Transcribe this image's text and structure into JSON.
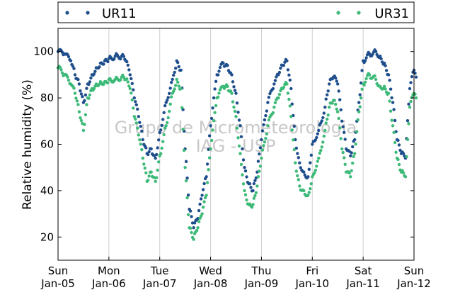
{
  "chart_data": {
    "type": "scatter",
    "ylabel": "Relative humidity (%)",
    "xlabel": "",
    "ylim": [
      10,
      110
    ],
    "yticks": [
      20,
      40,
      60,
      80,
      100
    ],
    "xlim": [
      "Jan-05",
      "Jan-12"
    ],
    "xticks": [
      {
        "day": "Sun",
        "date": "Jan-05"
      },
      {
        "day": "Mon",
        "date": "Jan-06"
      },
      {
        "day": "Tue",
        "date": "Jan-07"
      },
      {
        "day": "Wed",
        "date": "Jan-08"
      },
      {
        "day": "Thu",
        "date": "Jan-09"
      },
      {
        "day": "Fri",
        "date": "Jan-10"
      },
      {
        "day": "Sat",
        "date": "Jan-11"
      },
      {
        "day": "Sun",
        "date": "Jan-12"
      }
    ],
    "grid": "vertical",
    "legend_position": "top",
    "watermark": [
      "Grupo de Micrometeorologia",
      "IAG - USP"
    ],
    "series": [
      {
        "name": "UR11",
        "color": "#1f4e8c",
        "points": [
          [
            "Jan-05 00:00",
            100
          ],
          [
            "Jan-05 03:00",
            99
          ],
          [
            "Jan-05 06:00",
            96
          ],
          [
            "Jan-05 08:00",
            90
          ],
          [
            "Jan-05 10:00",
            86
          ],
          [
            "Jan-05 12:00",
            78
          ],
          [
            "Jan-05 14:00",
            86
          ],
          [
            "Jan-05 16:00",
            90
          ],
          [
            "Jan-05 18:00",
            93
          ],
          [
            "Jan-05 20:00",
            95
          ],
          [
            "Jan-05 22:00",
            96
          ],
          [
            "Jan-06 00:00",
            97
          ],
          [
            "Jan-06 03:00",
            98
          ],
          [
            "Jan-06 06:00",
            98
          ],
          [
            "Jan-06 08:00",
            96
          ],
          [
            "Jan-06 10:00",
            90
          ],
          [
            "Jan-06 12:00",
            80
          ],
          [
            "Jan-06 14:00",
            72
          ],
          [
            "Jan-06 16:00",
            62
          ],
          [
            "Jan-06 18:00",
            56
          ],
          [
            "Jan-06 20:00",
            58
          ],
          [
            "Jan-06 22:00",
            54
          ],
          [
            "Jan-07 00:00",
            65
          ],
          [
            "Jan-07 03:00",
            78
          ],
          [
            "Jan-07 06:00",
            88
          ],
          [
            "Jan-07 08:00",
            96
          ],
          [
            "Jan-07 10:00",
            92
          ],
          [
            "Jan-07 12:00",
            58
          ],
          [
            "Jan-07 14:00",
            32
          ],
          [
            "Jan-07 16:00",
            24
          ],
          [
            "Jan-07 18:00",
            28
          ],
          [
            "Jan-07 20:00",
            38
          ],
          [
            "Jan-07 22:00",
            46
          ],
          [
            "Jan-08 00:00",
            68
          ],
          [
            "Jan-08 03:00",
            90
          ],
          [
            "Jan-08 06:00",
            95
          ],
          [
            "Jan-08 08:00",
            94
          ],
          [
            "Jan-08 10:00",
            90
          ],
          [
            "Jan-08 12:00",
            82
          ],
          [
            "Jan-08 14:00",
            68
          ],
          [
            "Jan-08 16:00",
            50
          ],
          [
            "Jan-08 18:00",
            43
          ],
          [
            "Jan-08 20:00",
            40
          ],
          [
            "Jan-08 22:00",
            48
          ],
          [
            "Jan-09 00:00",
            62
          ],
          [
            "Jan-09 03:00",
            78
          ],
          [
            "Jan-09 06:00",
            86
          ],
          [
            "Jan-09 08:00",
            90
          ],
          [
            "Jan-09 10:00",
            94
          ],
          [
            "Jan-09 12:00",
            96
          ],
          [
            "Jan-09 14:00",
            84
          ],
          [
            "Jan-09 16:00",
            62
          ],
          [
            "Jan-09 18:00",
            52
          ],
          [
            "Jan-09 20:00",
            48
          ],
          [
            "Jan-09 22:00",
            46
          ],
          [
            "Jan-10 00:00",
            60
          ],
          [
            "Jan-10 03:00",
            66
          ],
          [
            "Jan-10 06:00",
            76
          ],
          [
            "Jan-10 08:00",
            86
          ],
          [
            "Jan-10 10:00",
            89
          ],
          [
            "Jan-10 12:00",
            86
          ],
          [
            "Jan-10 14:00",
            70
          ],
          [
            "Jan-10 16:00",
            58
          ],
          [
            "Jan-10 18:00",
            55
          ],
          [
            "Jan-10 20:00",
            62
          ],
          [
            "Jan-10 22:00",
            78
          ],
          [
            "Jan-11 00:00",
            96
          ],
          [
            "Jan-11 03:00",
            99
          ],
          [
            "Jan-11 06:00",
            100
          ],
          [
            "Jan-11 08:00",
            98
          ],
          [
            "Jan-11 10:00",
            95
          ],
          [
            "Jan-11 12:00",
            90
          ],
          [
            "Jan-11 14:00",
            78
          ],
          [
            "Jan-11 16:00",
            62
          ],
          [
            "Jan-11 18:00",
            56
          ],
          [
            "Jan-11 20:00",
            54
          ],
          [
            "Jan-11 22:00",
            84
          ],
          [
            "Jan-12 00:00",
            92
          ],
          [
            "Jan-12 01:00",
            89
          ]
        ]
      },
      {
        "name": "UR31",
        "color": "#3dba78",
        "points": [
          [
            "Jan-05 00:00",
            93
          ],
          [
            "Jan-05 03:00",
            90
          ],
          [
            "Jan-05 06:00",
            86
          ],
          [
            "Jan-05 08:00",
            82
          ],
          [
            "Jan-05 10:00",
            74
          ],
          [
            "Jan-05 12:00",
            66
          ],
          [
            "Jan-05 14:00",
            80
          ],
          [
            "Jan-05 16:00",
            84
          ],
          [
            "Jan-05 18:00",
            86
          ],
          [
            "Jan-05 20:00",
            87
          ],
          [
            "Jan-05 22:00",
            87
          ],
          [
            "Jan-06 00:00",
            88
          ],
          [
            "Jan-06 03:00",
            88
          ],
          [
            "Jan-06 06:00",
            89
          ],
          [
            "Jan-06 08:00",
            88
          ],
          [
            "Jan-06 10:00",
            84
          ],
          [
            "Jan-06 12:00",
            72
          ],
          [
            "Jan-06 14:00",
            64
          ],
          [
            "Jan-06 16:00",
            54
          ],
          [
            "Jan-06 18:00",
            44
          ],
          [
            "Jan-06 20:00",
            48
          ],
          [
            "Jan-06 22:00",
            44
          ],
          [
            "Jan-07 00:00",
            55
          ],
          [
            "Jan-07 03:00",
            68
          ],
          [
            "Jan-07 06:00",
            82
          ],
          [
            "Jan-07 08:00",
            88
          ],
          [
            "Jan-07 10:00",
            84
          ],
          [
            "Jan-07 12:00",
            50
          ],
          [
            "Jan-07 14:00",
            24
          ],
          [
            "Jan-07 16:00",
            19
          ],
          [
            "Jan-07 18:00",
            24
          ],
          [
            "Jan-07 20:00",
            30
          ],
          [
            "Jan-07 22:00",
            38
          ],
          [
            "Jan-08 00:00",
            58
          ],
          [
            "Jan-08 03:00",
            80
          ],
          [
            "Jan-08 06:00",
            85
          ],
          [
            "Jan-08 08:00",
            85
          ],
          [
            "Jan-08 10:00",
            82
          ],
          [
            "Jan-08 12:00",
            72
          ],
          [
            "Jan-08 14:00",
            56
          ],
          [
            "Jan-08 16:00",
            40
          ],
          [
            "Jan-08 18:00",
            34
          ],
          [
            "Jan-08 20:00",
            34
          ],
          [
            "Jan-08 22:00",
            42
          ],
          [
            "Jan-09 00:00",
            54
          ],
          [
            "Jan-09 03:00",
            68
          ],
          [
            "Jan-09 06:00",
            76
          ],
          [
            "Jan-09 08:00",
            80
          ],
          [
            "Jan-09 10:00",
            84
          ],
          [
            "Jan-09 12:00",
            86
          ],
          [
            "Jan-09 14:00",
            72
          ],
          [
            "Jan-09 16:00",
            52
          ],
          [
            "Jan-09 18:00",
            42
          ],
          [
            "Jan-09 20:00",
            40
          ],
          [
            "Jan-09 22:00",
            38
          ],
          [
            "Jan-10 00:00",
            46
          ],
          [
            "Jan-10 03:00",
            54
          ],
          [
            "Jan-10 06:00",
            66
          ],
          [
            "Jan-10 08:00",
            76
          ],
          [
            "Jan-10 10:00",
            79
          ],
          [
            "Jan-10 12:00",
            74
          ],
          [
            "Jan-10 14:00",
            58
          ],
          [
            "Jan-10 16:00",
            48
          ],
          [
            "Jan-10 18:00",
            46
          ],
          [
            "Jan-10 20:00",
            56
          ],
          [
            "Jan-10 22:00",
            74
          ],
          [
            "Jan-11 00:00",
            86
          ],
          [
            "Jan-11 03:00",
            90
          ],
          [
            "Jan-11 06:00",
            88
          ],
          [
            "Jan-11 08:00",
            85
          ],
          [
            "Jan-11 10:00",
            85
          ],
          [
            "Jan-11 12:00",
            82
          ],
          [
            "Jan-11 14:00",
            68
          ],
          [
            "Jan-11 16:00",
            54
          ],
          [
            "Jan-11 18:00",
            48
          ],
          [
            "Jan-11 20:00",
            46
          ],
          [
            "Jan-11 22:00",
            76
          ],
          [
            "Jan-12 00:00",
            82
          ],
          [
            "Jan-12 01:00",
            80
          ]
        ]
      }
    ]
  }
}
